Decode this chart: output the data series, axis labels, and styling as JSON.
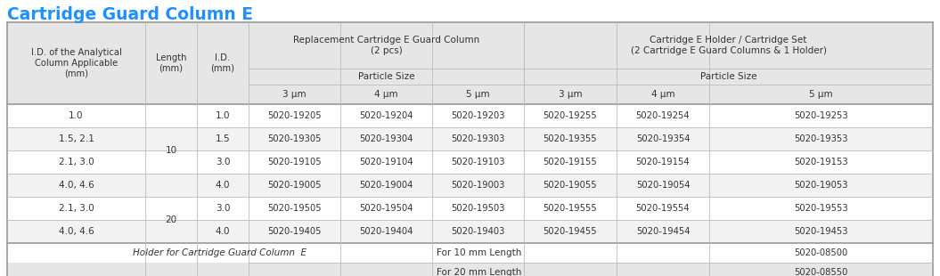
{
  "title": "Cartridge Guard Column E",
  "title_color": "#1E90FF",
  "header_bg": "#E6E6E6",
  "white_bg": "#FFFFFF",
  "row_alt_bg": "#F2F2F2",
  "border_dark": "#999999",
  "border_light": "#BBBBBB",
  "text_color": "#333333",
  "rows": [
    [
      "1.0",
      "1.0",
      "5020-19205",
      "5020-19204",
      "5020-19203",
      "5020-19255",
      "5020-19254",
      "5020-19253"
    ],
    [
      "1.5, 2.1",
      "1.5",
      "5020-19305",
      "5020-19304",
      "5020-19303",
      "5020-19355",
      "5020-19354",
      "5020-19353"
    ],
    [
      "2.1, 3.0",
      "3.0",
      "5020-19105",
      "5020-19104",
      "5020-19103",
      "5020-19155",
      "5020-19154",
      "5020-19153"
    ],
    [
      "4.0, 4.6",
      "4.0",
      "5020-19005",
      "5020-19004",
      "5020-19003",
      "5020-19055",
      "5020-19054",
      "5020-19053"
    ],
    [
      "2.1, 3.0",
      "3.0",
      "5020-19505",
      "5020-19504",
      "5020-19503",
      "5020-19555",
      "5020-19554",
      "5020-19553"
    ],
    [
      "4.0, 4.6",
      "4.0",
      "5020-19405",
      "5020-19404",
      "5020-19403",
      "5020-19455",
      "5020-19454",
      "5020-19453"
    ]
  ],
  "length_groups": [
    [
      "10",
      0,
      3
    ],
    [
      "20",
      4,
      5
    ]
  ],
  "footer_text_left": "Holder for Cartridge Guard Column  E",
  "footer_10": "For 10 mm Length",
  "footer_20": "For 20 mm Length",
  "footer_sku_10": "5020-08500",
  "footer_sku_20": "5020-08550",
  "figsize": [
    10.55,
    3.1
  ],
  "dpi": 100
}
